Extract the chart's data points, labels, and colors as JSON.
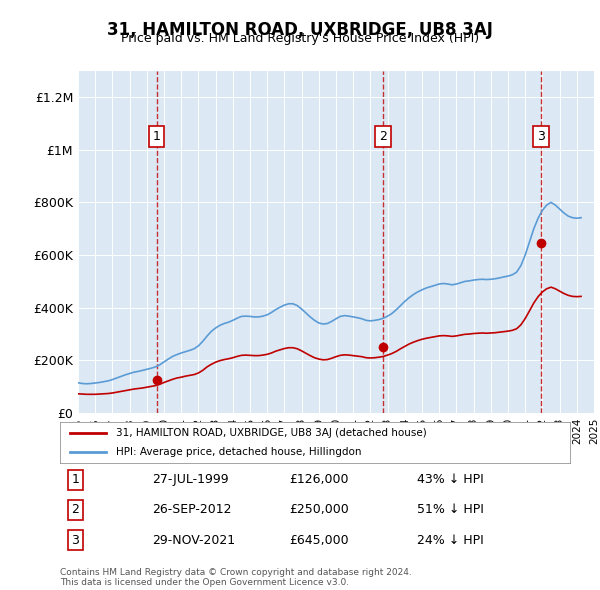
{
  "title": "31, HAMILTON ROAD, UXBRIDGE, UB8 3AJ",
  "subtitle": "Price paid vs. HM Land Registry's House Price Index (HPI)",
  "bg_color": "#dce9f5",
  "plot_bg_color": "#dce9f5",
  "hpi_color": "#5b9bd5",
  "price_color": "#c00000",
  "ylim": [
    0,
    1300000
  ],
  "yticks": [
    0,
    200000,
    400000,
    600000,
    800000,
    1000000,
    1200000
  ],
  "ytick_labels": [
    "£0",
    "£200K",
    "£400K",
    "£600K",
    "£800K",
    "£1M",
    "£1.2M"
  ],
  "xmin": 1995,
  "xmax": 2025,
  "transactions": [
    {
      "num": 1,
      "date": "27-JUL-1999",
      "year": 1999.57,
      "price": 126000,
      "pct": "43%",
      "dir": "↓"
    },
    {
      "num": 2,
      "date": "26-SEP-2012",
      "year": 2012.73,
      "price": 250000,
      "pct": "51%",
      "dir": "↓"
    },
    {
      "num": 3,
      "date": "29-NOV-2021",
      "year": 2021.91,
      "price": 645000,
      "pct": "24%",
      "dir": "↓"
    }
  ],
  "legend_label_red": "31, HAMILTON ROAD, UXBRIDGE, UB8 3AJ (detached house)",
  "legend_label_blue": "HPI: Average price, detached house, Hillingdon",
  "footer1": "Contains HM Land Registry data © Crown copyright and database right 2024.",
  "footer2": "This data is licensed under the Open Government Licence v3.0.",
  "hpi_data_x": [
    1995,
    1995.25,
    1995.5,
    1995.75,
    1996,
    1996.25,
    1996.5,
    1996.75,
    1997,
    1997.25,
    1997.5,
    1997.75,
    1998,
    1998.25,
    1998.5,
    1998.75,
    1999,
    1999.25,
    1999.5,
    1999.75,
    2000,
    2000.25,
    2000.5,
    2000.75,
    2001,
    2001.25,
    2001.5,
    2001.75,
    2002,
    2002.25,
    2002.5,
    2002.75,
    2003,
    2003.25,
    2003.5,
    2003.75,
    2004,
    2004.25,
    2004.5,
    2004.75,
    2005,
    2005.25,
    2005.5,
    2005.75,
    2006,
    2006.25,
    2006.5,
    2006.75,
    2007,
    2007.25,
    2007.5,
    2007.75,
    2008,
    2008.25,
    2008.5,
    2008.75,
    2009,
    2009.25,
    2009.5,
    2009.75,
    2010,
    2010.25,
    2010.5,
    2010.75,
    2011,
    2011.25,
    2011.5,
    2011.75,
    2012,
    2012.25,
    2012.5,
    2012.75,
    2013,
    2013.25,
    2013.5,
    2013.75,
    2014,
    2014.25,
    2014.5,
    2014.75,
    2015,
    2015.25,
    2015.5,
    2015.75,
    2016,
    2016.25,
    2016.5,
    2016.75,
    2017,
    2017.25,
    2017.5,
    2017.75,
    2018,
    2018.25,
    2018.5,
    2018.75,
    2019,
    2019.25,
    2019.5,
    2019.75,
    2020,
    2020.25,
    2020.5,
    2020.75,
    2021,
    2021.25,
    2021.5,
    2021.75,
    2022,
    2022.25,
    2022.5,
    2022.75,
    2023,
    2023.25,
    2023.5,
    2023.75,
    2024,
    2024.25
  ],
  "hpi_data_y": [
    115000,
    112000,
    111000,
    112000,
    114000,
    116000,
    119000,
    122000,
    127000,
    133000,
    139000,
    145000,
    150000,
    155000,
    158000,
    162000,
    166000,
    170000,
    175000,
    183000,
    194000,
    205000,
    215000,
    222000,
    228000,
    233000,
    238000,
    244000,
    255000,
    272000,
    292000,
    310000,
    323000,
    333000,
    340000,
    345000,
    352000,
    360000,
    367000,
    368000,
    367000,
    365000,
    365000,
    368000,
    373000,
    382000,
    393000,
    402000,
    410000,
    415000,
    415000,
    408000,
    395000,
    380000,
    365000,
    352000,
    342000,
    338000,
    340000,
    348000,
    358000,
    367000,
    370000,
    368000,
    365000,
    362000,
    358000,
    352000,
    350000,
    352000,
    355000,
    360000,
    368000,
    378000,
    392000,
    408000,
    424000,
    438000,
    450000,
    460000,
    468000,
    475000,
    480000,
    485000,
    490000,
    492000,
    490000,
    487000,
    490000,
    495000,
    500000,
    502000,
    505000,
    507000,
    508000,
    507000,
    508000,
    510000,
    513000,
    517000,
    520000,
    525000,
    535000,
    560000,
    600000,
    650000,
    700000,
    740000,
    770000,
    790000,
    800000,
    790000,
    775000,
    760000,
    748000,
    742000,
    740000,
    742000
  ],
  "price_data_x": [
    1995,
    1995.25,
    1995.5,
    1995.75,
    1996,
    1996.25,
    1996.5,
    1996.75,
    1997,
    1997.25,
    1997.5,
    1997.75,
    1998,
    1998.25,
    1998.5,
    1998.75,
    1999,
    1999.25,
    1999.5,
    1999.75,
    2000,
    2000.25,
    2000.5,
    2000.75,
    2001,
    2001.25,
    2001.5,
    2001.75,
    2002,
    2002.25,
    2002.5,
    2002.75,
    2003,
    2003.25,
    2003.5,
    2003.75,
    2004,
    2004.25,
    2004.5,
    2004.75,
    2005,
    2005.25,
    2005.5,
    2005.75,
    2006,
    2006.25,
    2006.5,
    2006.75,
    2007,
    2007.25,
    2007.5,
    2007.75,
    2008,
    2008.25,
    2008.5,
    2008.75,
    2009,
    2009.25,
    2009.5,
    2009.75,
    2010,
    2010.25,
    2010.5,
    2010.75,
    2011,
    2011.25,
    2011.5,
    2011.75,
    2012,
    2012.25,
    2012.5,
    2012.75,
    2013,
    2013.25,
    2013.5,
    2013.75,
    2014,
    2014.25,
    2014.5,
    2014.75,
    2015,
    2015.25,
    2015.5,
    2015.75,
    2016,
    2016.25,
    2016.5,
    2016.75,
    2017,
    2017.25,
    2017.5,
    2017.75,
    2018,
    2018.25,
    2018.5,
    2018.75,
    2019,
    2019.25,
    2019.5,
    2019.75,
    2020,
    2020.25,
    2020.5,
    2020.75,
    2021,
    2021.25,
    2021.5,
    2021.75,
    2022,
    2022.25,
    2022.5,
    2022.75,
    2023,
    2023.25,
    2023.5,
    2023.75,
    2024,
    2024.25
  ],
  "price_data_y": [
    73000,
    72000,
    71000,
    71000,
    71000,
    72000,
    73000,
    74000,
    76000,
    79000,
    82000,
    85000,
    88000,
    91000,
    93000,
    95000,
    98000,
    101000,
    104000,
    109000,
    116000,
    122000,
    128000,
    133000,
    136000,
    140000,
    143000,
    146000,
    152000,
    162000,
    175000,
    185000,
    193000,
    199000,
    203000,
    206000,
    210000,
    215000,
    219000,
    220000,
    219000,
    218000,
    218000,
    220000,
    223000,
    228000,
    235000,
    240000,
    245000,
    248000,
    248000,
    244000,
    236000,
    227000,
    218000,
    210000,
    205000,
    202000,
    203000,
    208000,
    214000,
    219000,
    221000,
    220000,
    218000,
    216000,
    214000,
    210000,
    209000,
    210000,
    212000,
    215000,
    220000,
    226000,
    234000,
    244000,
    253000,
    262000,
    269000,
    275000,
    280000,
    284000,
    287000,
    290000,
    293000,
    294000,
    293000,
    291000,
    293000,
    296000,
    299000,
    300000,
    302000,
    303000,
    304000,
    303000,
    304000,
    305000,
    307000,
    309000,
    311000,
    314000,
    320000,
    335000,
    359000,
    388000,
    418000,
    442000,
    460000,
    472000,
    478000,
    472000,
    463000,
    454000,
    447000,
    443000,
    442000,
    443000
  ]
}
